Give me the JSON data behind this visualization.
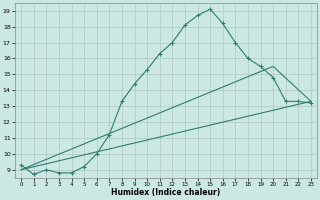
{
  "title": "",
  "xlabel": "Humidex (Indice chaleur)",
  "ylabel": "",
  "background_color": "#cce8e4",
  "grid_color": "#b0c8c4",
  "line_color": "#2e7d6e",
  "xlim": [
    -0.5,
    23.5
  ],
  "ylim": [
    8.5,
    19.5
  ],
  "xticks": [
    0,
    1,
    2,
    3,
    4,
    5,
    6,
    7,
    8,
    9,
    10,
    11,
    12,
    13,
    14,
    15,
    16,
    17,
    18,
    19,
    20,
    21,
    22,
    23
  ],
  "yticks": [
    9,
    10,
    11,
    12,
    13,
    14,
    15,
    16,
    17,
    18,
    19
  ],
  "curve1_x": [
    0,
    1,
    2,
    3,
    4,
    5,
    6,
    7,
    8,
    9,
    10,
    11,
    12,
    13,
    14,
    15,
    16,
    17,
    18,
    19,
    20,
    21,
    22,
    23
  ],
  "curve1_y": [
    9.3,
    8.7,
    9.0,
    8.8,
    8.8,
    9.2,
    10.0,
    11.2,
    13.3,
    14.4,
    15.3,
    16.3,
    17.0,
    18.1,
    18.7,
    19.1,
    18.2,
    17.0,
    16.0,
    15.5,
    14.8,
    13.3,
    13.3,
    13.2
  ],
  "curve2_x": [
    0,
    23
  ],
  "curve2_y": [
    9.0,
    13.3
  ],
  "curve3_x": [
    0,
    20,
    23
  ],
  "curve3_y": [
    9.0,
    15.5,
    13.3
  ],
  "figsize": [
    3.2,
    2.0
  ],
  "dpi": 100
}
